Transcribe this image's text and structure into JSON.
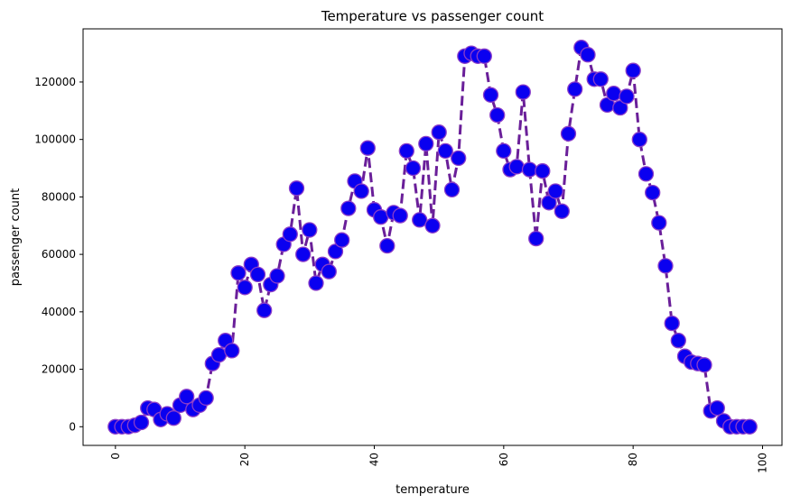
{
  "chart_data": {
    "type": "line",
    "title": "Temperature vs passenger count",
    "xlabel": "temperature",
    "ylabel": "passenger count",
    "xlim": [
      -5,
      103
    ],
    "ylim": [
      -6500,
      138500
    ],
    "xticks": [
      0,
      20,
      40,
      60,
      80,
      100
    ],
    "yticks": [
      0,
      20000,
      40000,
      60000,
      80000,
      100000,
      120000
    ],
    "xtick_rotation": 90,
    "grid": false,
    "legend": "none",
    "line_style": "dashed",
    "line_color": "#6a1f99",
    "marker": "circle",
    "marker_face_color": "#0a00f0",
    "marker_edge_color": "#8a3cc8",
    "series": [
      {
        "x": [
          0,
          1,
          2,
          3,
          4,
          5,
          6,
          7,
          8,
          9,
          10,
          11,
          12,
          13,
          14,
          15,
          16,
          17,
          18,
          19,
          20,
          21,
          22,
          23,
          24,
          25,
          26,
          27,
          28,
          29,
          30,
          31,
          32,
          33,
          34,
          35,
          36,
          37,
          38,
          39,
          40,
          41,
          42,
          43,
          44,
          45,
          46,
          47,
          48,
          49,
          50,
          51,
          52,
          53,
          54,
          55,
          56,
          57,
          58,
          59,
          60,
          61,
          62,
          63,
          64,
          65,
          66,
          67,
          68,
          69,
          70,
          71,
          72,
          73,
          74,
          75,
          76,
          77,
          78,
          79,
          80,
          81,
          82,
          83,
          84,
          85,
          86,
          87,
          88,
          89,
          90,
          91,
          92,
          93,
          94,
          95,
          96,
          97,
          98
        ],
        "y": [
          0,
          0,
          0,
          500,
          1500,
          6500,
          6000,
          2500,
          4500,
          3000,
          7500,
          10500,
          6000,
          7500,
          10000,
          22000,
          25000,
          30000,
          26500,
          53500,
          48500,
          56500,
          53000,
          40500,
          49500,
          52500,
          63500,
          67000,
          83000,
          60000,
          68500,
          50000,
          56500,
          54000,
          61000,
          65000,
          76000,
          85500,
          82000,
          97000,
          75500,
          73000,
          63000,
          74500,
          73500,
          96000,
          90000,
          72000,
          98500,
          70000,
          102500,
          96000,
          82500,
          93500,
          129000,
          130000,
          129000,
          129000,
          115500,
          108500,
          96000,
          89500,
          90500,
          116500,
          89500,
          65500,
          89000,
          78000,
          82000,
          75000,
          102000,
          117500,
          132000,
          129500,
          121000,
          121000,
          112000,
          116000,
          111000,
          115000,
          124000,
          100000,
          88000,
          81500,
          71000,
          56000,
          36000,
          30000,
          24500,
          22500,
          22000,
          21500,
          5500,
          6500,
          2000,
          0,
          0,
          0,
          0
        ]
      }
    ]
  }
}
